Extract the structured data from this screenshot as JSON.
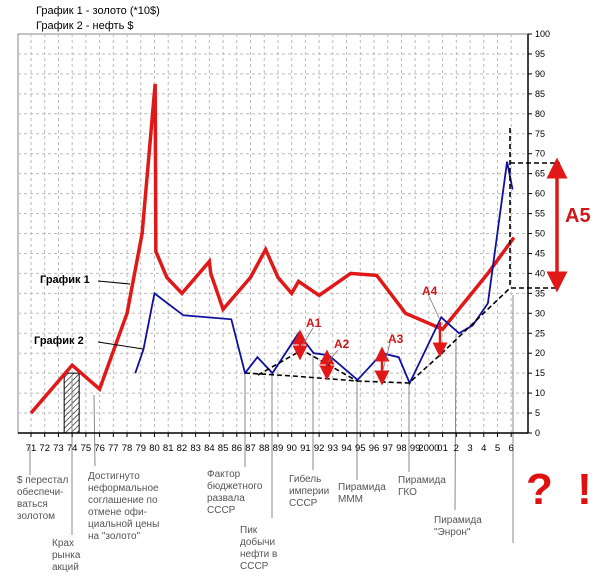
{
  "chart_data": {
    "type": "line",
    "title_lines": [
      "График 1 - золото (*10$)",
      "График 2 - нефть $"
    ],
    "categories": [
      "71",
      "72",
      "73",
      "74",
      "75",
      "76",
      "77",
      "78",
      "79",
      "80",
      "81",
      "82",
      "83",
      "84",
      "85",
      "86",
      "87",
      "88",
      "89",
      "90",
      "91",
      "92",
      "93",
      "94",
      "95",
      "96",
      "97",
      "98",
      "99",
      "2000",
      "01",
      "2",
      "3",
      "4",
      "5",
      "6"
    ],
    "ylim": [
      0,
      100
    ],
    "yticks": [
      0,
      5,
      10,
      15,
      20,
      25,
      30,
      35,
      40,
      45,
      50,
      55,
      60,
      65,
      70,
      75,
      80,
      85,
      90,
      95,
      100
    ],
    "grid": true,
    "series": [
      {
        "name": "График 1",
        "color": "#e01818",
        "x": [
          1971,
          1974,
          1976,
          1978,
          1979.1,
          1980.05,
          1980.1,
          1980.9,
          1982,
          1984,
          1984.1,
          1985,
          1987,
          1988.1,
          1989,
          1990,
          1990.5,
          1992,
          1994.3,
          1996.2,
          1998.3,
          2001,
          2004.3,
          2006.2
        ],
        "y": [
          5,
          17,
          11,
          30,
          50,
          87.5,
          45.5,
          39,
          35,
          43,
          40,
          31,
          39,
          46,
          39,
          35,
          38,
          34.5,
          40,
          39.5,
          30,
          26,
          40,
          49
        ]
      },
      {
        "name": "График 2",
        "color": "#1010a0",
        "x": [
          1978.6,
          1979.2,
          1980,
          1982.1,
          1985.6,
          1986.6,
          1987.5,
          1988.6,
          1990.5,
          1991.6,
          1992.7,
          1994.8,
          1996.6,
          1997.8,
          1998.6,
          2000.9,
          2002.2,
          2003.2,
          2004.3,
          2005.7,
          2006.1
        ],
        "y": [
          15,
          21,
          35,
          29.5,
          28.5,
          15,
          19,
          15,
          25,
          20,
          19.5,
          13.3,
          20,
          19,
          12.5,
          29,
          25,
          27,
          32.5,
          68,
          61
        ]
      }
    ],
    "hatched_bar": {
      "category": "74",
      "value": 15
    },
    "annotations": [
      "A1",
      "A2",
      "A3",
      "A4",
      "A5"
    ],
    "series_labels": [
      "График 1",
      "График 2"
    ],
    "event_notes": [
      "$ перестал\nобеспечи-\nваться\nзолотом",
      "Крах\nрынка\nакций",
      "Достигнуто\nнеформальное\nсоглашение по\nотмене офи-\nциальной цены\nна \"золото\"",
      "Фактор\nбюджетного\nразвала\nСССР",
      "Пик\nдобычи\nнефти в\nСССР",
      "Гибель\nимперии\nСССР",
      "Пирамида\nМММ",
      "Пирамида\nГКО",
      "Пирамида\n\"Энрон\""
    ],
    "question_mark": "? !"
  }
}
